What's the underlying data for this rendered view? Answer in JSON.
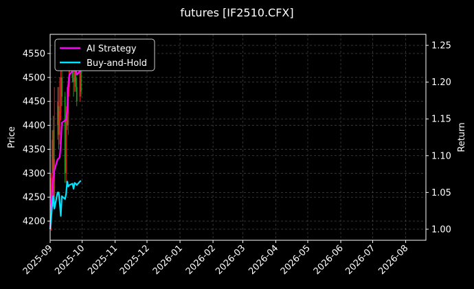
{
  "chart_data": {
    "type": "line",
    "title": "futures [IF2510.CFX]",
    "xlabel": "",
    "ylabel": "Price",
    "y2label": "Return",
    "x_tick_labels": [
      "2025-09",
      "2025-10",
      "2025-11",
      "2025-12",
      "2026-01",
      "2026-02",
      "2026-03",
      "2026-04",
      "2026-05",
      "2026-06",
      "2026-07",
      "2026-08"
    ],
    "x_ticks": [
      "2025-09-01",
      "2025-10-01",
      "2025-11-01",
      "2025-12-01",
      "2026-01-01",
      "2026-02-01",
      "2026-03-01",
      "2026-04-01",
      "2026-05-01",
      "2026-06-01",
      "2026-07-01",
      "2026-08-01"
    ],
    "xlim": [
      "2025-09-01",
      "2026-08-20"
    ],
    "ylim": [
      4160,
      4590
    ],
    "y_ticks": [
      4200,
      4250,
      4300,
      4350,
      4400,
      4450,
      4500,
      4550
    ],
    "y2lim": [
      0.985,
      1.265
    ],
    "y2_ticks": [
      1.0,
      1.05,
      1.1,
      1.15,
      1.2,
      1.25
    ],
    "y2_tick_labels": [
      "1.00",
      "1.05",
      "1.10",
      "1.15",
      "1.20",
      "1.25"
    ],
    "grid": true,
    "legend_placement": "top-left",
    "candles": [
      {
        "date": "2025-09-02",
        "open": 4240,
        "close": 4290,
        "high": 4300,
        "low": 4180
      },
      {
        "date": "2025-09-03",
        "open": 4300,
        "close": 4370,
        "high": 4390,
        "low": 4270
      },
      {
        "date": "2025-09-04",
        "open": 4390,
        "close": 4250,
        "high": 4420,
        "low": 4230
      },
      {
        "date": "2025-09-05",
        "open": 4250,
        "close": 4330,
        "high": 4480,
        "low": 4230
      },
      {
        "date": "2025-09-08",
        "open": 4400,
        "close": 4450,
        "high": 4480,
        "low": 4370
      },
      {
        "date": "2025-09-09",
        "open": 4440,
        "close": 4380,
        "high": 4480,
        "low": 4350
      },
      {
        "date": "2025-09-10",
        "open": 4380,
        "close": 4430,
        "high": 4500,
        "low": 4360
      },
      {
        "date": "2025-09-11",
        "open": 4430,
        "close": 4500,
        "high": 4520,
        "low": 4410
      },
      {
        "date": "2025-09-12",
        "open": 4500,
        "close": 4460,
        "high": 4530,
        "low": 4440
      },
      {
        "date": "2025-09-15",
        "open": 4460,
        "close": 4300,
        "high": 4470,
        "low": 4280
      },
      {
        "date": "2025-09-16",
        "open": 4300,
        "close": 4420,
        "high": 4440,
        "low": 4280
      },
      {
        "date": "2025-09-17",
        "open": 4420,
        "close": 4400,
        "high": 4480,
        "low": 4390
      },
      {
        "date": "2025-09-18",
        "open": 4400,
        "close": 4480,
        "high": 4500,
        "low": 4380
      },
      {
        "date": "2025-09-19",
        "open": 4480,
        "close": 4520,
        "high": 4540,
        "low": 4460
      },
      {
        "date": "2025-09-22",
        "open": 4520,
        "close": 4500,
        "high": 4570,
        "low": 4490
      },
      {
        "date": "2025-09-23",
        "open": 4500,
        "close": 4490,
        "high": 4560,
        "low": 4460
      },
      {
        "date": "2025-09-24",
        "open": 4490,
        "close": 4530,
        "high": 4550,
        "low": 4470
      },
      {
        "date": "2025-09-25",
        "open": 4530,
        "close": 4480,
        "high": 4550,
        "low": 4470
      },
      {
        "date": "2025-09-26",
        "open": 4480,
        "close": 4450,
        "high": 4500,
        "low": 4440
      },
      {
        "date": "2025-09-29",
        "open": 4460,
        "close": 4540,
        "high": 4560,
        "low": 4450
      },
      {
        "date": "2025-09-30",
        "open": 4530,
        "close": 4470,
        "high": 4560,
        "low": 4460
      }
    ],
    "series": [
      {
        "name": "AI Strategy",
        "color": "#ff00ff",
        "x": [
          "2025-09-01",
          "2025-09-02",
          "2025-09-03",
          "2025-09-04",
          "2025-09-05",
          "2025-09-08",
          "2025-09-09",
          "2025-09-10",
          "2025-09-11",
          "2025-09-12",
          "2025-09-15",
          "2025-09-16",
          "2025-09-17",
          "2025-09-18",
          "2025-09-19",
          "2025-09-22",
          "2025-09-23",
          "2025-09-24",
          "2025-09-25",
          "2025-09-26",
          "2025-09-29",
          "2025-09-30"
        ],
        "values": [
          1.0,
          1.03,
          1.055,
          1.07,
          1.08,
          1.095,
          1.096,
          1.098,
          1.115,
          1.145,
          1.148,
          1.15,
          1.16,
          1.195,
          1.21,
          1.215,
          1.225,
          1.23,
          1.22,
          1.21,
          1.215,
          1.22
        ]
      },
      {
        "name": "Buy-and-Hold",
        "color": "#00e5ff",
        "x": [
          "2025-09-01",
          "2025-09-02",
          "2025-09-03",
          "2025-09-04",
          "2025-09-05",
          "2025-09-08",
          "2025-09-09",
          "2025-09-10",
          "2025-09-11",
          "2025-09-12",
          "2025-09-15",
          "2025-09-16",
          "2025-09-17",
          "2025-09-18",
          "2025-09-19",
          "2025-09-22",
          "2025-09-23",
          "2025-09-24",
          "2025-09-25",
          "2025-09-26",
          "2025-09-29",
          "2025-09-30"
        ],
        "values": [
          1.0,
          1.015,
          1.035,
          1.045,
          1.028,
          1.05,
          1.05,
          1.036,
          1.018,
          1.045,
          1.041,
          1.048,
          1.065,
          1.058,
          1.06,
          1.062,
          1.055,
          1.063,
          1.062,
          1.06,
          1.065,
          1.066
        ]
      }
    ]
  }
}
